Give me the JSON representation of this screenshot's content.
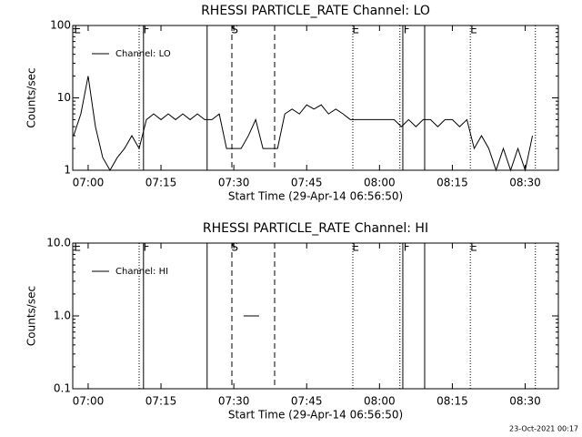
{
  "chart_data": [
    {
      "type": "line",
      "title": "RHESSI PARTICLE_RATE Channel: LO",
      "xlabel": "Start Time (29-Apr-14 06:56:50)",
      "ylabel": "Counts/sec",
      "xlim": [
        416.83,
        516.83
      ],
      "xticks": [
        {
          "value": 420,
          "label": "07:00"
        },
        {
          "value": 435,
          "label": "07:15"
        },
        {
          "value": 450,
          "label": "07:30"
        },
        {
          "value": 465,
          "label": "07:45"
        },
        {
          "value": 480,
          "label": "08:00"
        },
        {
          "value": 495,
          "label": "08:15"
        },
        {
          "value": 510,
          "label": "08:30"
        }
      ],
      "ylim": [
        1,
        100
      ],
      "yticks": [
        1,
        10,
        100
      ],
      "log_y": true,
      "legend": "upper left",
      "series": [
        {
          "name": "Channel: LO",
          "color": "#000000",
          "x": [
            417,
            418.5,
            420,
            421.5,
            423,
            424.5,
            426,
            427.5,
            429,
            430.5,
            432,
            433.5,
            435,
            436.5,
            438,
            439.5,
            441,
            442.5,
            444,
            445.5,
            447,
            448.5,
            450,
            451.5,
            453,
            454.5,
            456,
            457.5,
            459,
            460.5,
            462,
            463.5,
            465,
            466.5,
            468,
            469.5,
            471,
            472.5,
            474,
            475.5,
            477,
            478.5,
            480,
            481.5,
            483,
            484.5,
            486,
            487.5,
            489,
            490.5,
            492,
            493.5,
            495,
            496.5,
            498,
            499.5,
            501,
            502.5,
            504,
            505.5,
            507,
            508.5,
            510,
            511.5
          ],
          "values": [
            3,
            6,
            20,
            4,
            1.5,
            1,
            1.5,
            2,
            3,
            2,
            5,
            6,
            5,
            6,
            5,
            6,
            5,
            6,
            5,
            5,
            6,
            2,
            2,
            2,
            3,
            5,
            2,
            2,
            2,
            6,
            7,
            6,
            8,
            7,
            8,
            6,
            7,
            6,
            5,
            5,
            5,
            5,
            5,
            5,
            5,
            4,
            5,
            4,
            5,
            5,
            4,
            5,
            5,
            4,
            5,
            2,
            3,
            2,
            1,
            2,
            1,
            2,
            1,
            3
          ]
        }
      ],
      "flags": [
        {
          "x": 417.8,
          "label": "E"
        },
        {
          "x": 432.0,
          "label": "F"
        },
        {
          "x": 450.2,
          "label": "S"
        },
        {
          "x": 475.1,
          "label": "E"
        },
        {
          "x": 485.6,
          "label": "F"
        },
        {
          "x": 499.4,
          "label": "E"
        }
      ],
      "marker_lines": [
        {
          "x": 430.5,
          "style": "dotted"
        },
        {
          "x": 431.4,
          "style": "solid"
        },
        {
          "x": 444.5,
          "style": "solid"
        },
        {
          "x": 449.6,
          "style": "dashed"
        },
        {
          "x": 458.4,
          "style": "dashed"
        },
        {
          "x": 474.5,
          "style": "dotted"
        },
        {
          "x": 484.2,
          "style": "dotted"
        },
        {
          "x": 484.8,
          "style": "solid"
        },
        {
          "x": 489.3,
          "style": "solid"
        },
        {
          "x": 498.7,
          "style": "dotted"
        },
        {
          "x": 512.1,
          "style": "dotted"
        }
      ]
    },
    {
      "type": "line",
      "title": "RHESSI PARTICLE_RATE Channel: HI",
      "xlabel": "Start Time (29-Apr-14 06:56:50)",
      "ylabel": "Counts/sec",
      "xlim": [
        416.83,
        516.83
      ],
      "xticks": [
        {
          "value": 420,
          "label": "07:00"
        },
        {
          "value": 435,
          "label": "07:15"
        },
        {
          "value": 450,
          "label": "07:30"
        },
        {
          "value": 465,
          "label": "07:45"
        },
        {
          "value": 480,
          "label": "08:00"
        },
        {
          "value": 495,
          "label": "08:15"
        },
        {
          "value": 510,
          "label": "08:30"
        }
      ],
      "ylim": [
        0.1,
        10
      ],
      "yticks": [
        0.1,
        {
          "value": 1,
          "label": "1.0"
        },
        {
          "value": 10,
          "label": "10.0"
        }
      ],
      "log_y": true,
      "legend": "upper left",
      "series": [
        {
          "name": "Channel: HI",
          "color": "#000000",
          "x": [
            452.0,
            455.2
          ],
          "values": [
            1,
            1
          ]
        }
      ],
      "flags": [
        {
          "x": 417.8,
          "label": "E"
        },
        {
          "x": 432.0,
          "label": "F"
        },
        {
          "x": 450.2,
          "label": "S"
        },
        {
          "x": 475.1,
          "label": "E"
        },
        {
          "x": 485.6,
          "label": "F"
        },
        {
          "x": 499.4,
          "label": "E"
        }
      ],
      "marker_lines": [
        {
          "x": 430.5,
          "style": "dotted"
        },
        {
          "x": 431.4,
          "style": "solid"
        },
        {
          "x": 444.5,
          "style": "solid"
        },
        {
          "x": 449.6,
          "style": "dashed"
        },
        {
          "x": 458.4,
          "style": "dashed"
        },
        {
          "x": 474.5,
          "style": "dotted"
        },
        {
          "x": 484.2,
          "style": "dotted"
        },
        {
          "x": 484.8,
          "style": "solid"
        },
        {
          "x": 489.3,
          "style": "solid"
        },
        {
          "x": 498.7,
          "style": "dotted"
        },
        {
          "x": 512.1,
          "style": "dotted"
        }
      ]
    }
  ],
  "footer": "23-Oct-2021 00:17"
}
